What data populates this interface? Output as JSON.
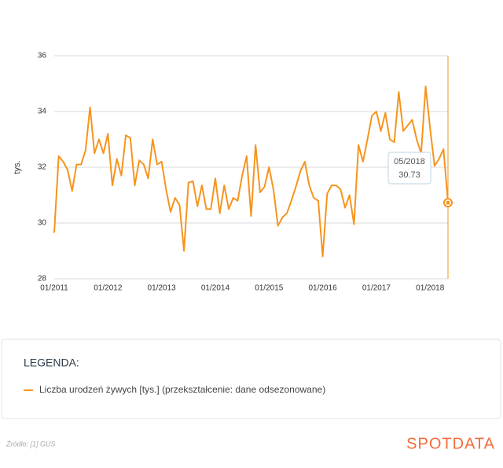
{
  "chart_data": {
    "type": "line",
    "y_label": "tys.",
    "x": [
      "01/2011",
      null,
      null,
      null,
      null,
      null,
      null,
      null,
      null,
      null,
      null,
      null,
      "01/2012",
      null,
      null,
      null,
      null,
      null,
      null,
      null,
      null,
      null,
      null,
      null,
      "01/2013",
      null,
      null,
      null,
      null,
      null,
      null,
      null,
      null,
      null,
      null,
      null,
      "01/2014",
      null,
      null,
      null,
      null,
      null,
      null,
      null,
      null,
      null,
      null,
      null,
      "01/2015",
      null,
      null,
      null,
      null,
      null,
      null,
      null,
      null,
      null,
      null,
      null,
      "01/2016",
      null,
      null,
      null,
      null,
      null,
      null,
      null,
      null,
      null,
      null,
      null,
      "01/2017",
      null,
      null,
      null,
      null,
      null,
      null,
      null,
      null,
      null,
      null,
      null,
      "01/2018",
      null,
      null,
      null,
      "05/2018"
    ],
    "series": [
      {
        "name": "Liczba urodzeń żywych [tys.] (przekształcenie: dane odsezonowane)",
        "color": "#f7941d",
        "values": [
          29.65,
          32.4,
          32.2,
          31.9,
          31.15,
          32.1,
          32.1,
          32.6,
          34.15,
          32.5,
          33.0,
          32.5,
          33.2,
          31.35,
          32.3,
          31.7,
          33.15,
          33.05,
          31.35,
          32.25,
          32.1,
          31.6,
          33.0,
          32.1,
          32.2,
          31.2,
          30.4,
          30.9,
          30.65,
          29.0,
          31.45,
          31.5,
          30.6,
          31.35,
          30.5,
          30.5,
          31.6,
          30.35,
          31.35,
          30.5,
          30.9,
          30.8,
          31.7,
          32.4,
          30.25,
          32.8,
          31.1,
          31.3,
          32.0,
          31.2,
          29.9,
          30.2,
          30.35,
          30.8,
          31.3,
          31.85,
          32.2,
          31.35,
          30.9,
          30.8,
          28.8,
          31.05,
          31.35,
          31.35,
          31.2,
          30.55,
          31.0,
          29.95,
          32.8,
          32.2,
          33.0,
          33.85,
          34.0,
          33.3,
          33.95,
          33.0,
          32.9,
          34.7,
          33.3,
          33.5,
          33.7,
          33.0,
          32.5,
          34.9,
          33.4,
          32.05,
          32.3,
          32.65,
          30.73
        ]
      }
    ],
    "ylim": [
      28,
      36
    ],
    "yticks": [
      28,
      30,
      32,
      34,
      36
    ],
    "grid": true,
    "legend_title": "LEGENDA:",
    "source": "Źródło: [1] GUS",
    "brand": "SPOTDATA"
  }
}
